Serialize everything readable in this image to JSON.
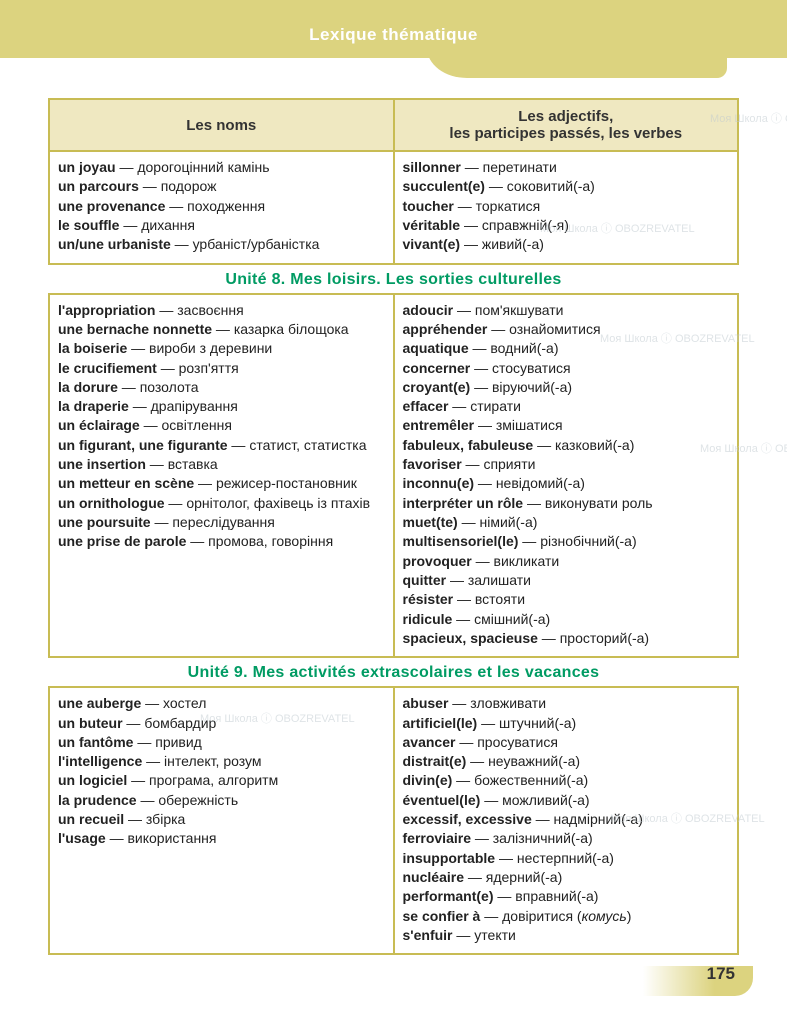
{
  "header": {
    "title": "Lexique thématique"
  },
  "columns": {
    "left_header": "Les noms",
    "right_header_line1": "Les adjectifs,",
    "right_header_line2": "les participes passés, les verbes"
  },
  "section_top": {
    "left": [
      {
        "fr": "un joyau",
        "uk": "дорогоцінний камінь"
      },
      {
        "fr": "un parcours",
        "uk": "подорож"
      },
      {
        "fr": "une provenance",
        "uk": "походження"
      },
      {
        "fr": "le souffle",
        "uk": "дихання"
      },
      {
        "fr": "un/une urbaniste",
        "uk": "урбаніст/урбаністка"
      }
    ],
    "right": [
      {
        "fr": "sillonner",
        "uk": "перетинати"
      },
      {
        "fr": "succulent(e)",
        "uk": "соковитий(-а)"
      },
      {
        "fr": "toucher",
        "uk": "торкатися"
      },
      {
        "fr": "véritable",
        "uk": "справжній(-я)"
      },
      {
        "fr": "vivant(e)",
        "uk": "живий(-а)"
      }
    ]
  },
  "unit8": {
    "title": "Unité 8. Mes loisirs. Les sorties culturelles",
    "left": [
      {
        "fr": "l'appropriation",
        "uk": "засвоєння"
      },
      {
        "fr": "une bernache nonnette",
        "uk": "казарка білощока"
      },
      {
        "fr": "la boiserie",
        "uk": "вироби з деревини"
      },
      {
        "fr": "le crucifiement",
        "uk": "розп'яття"
      },
      {
        "fr": "la dorure",
        "uk": "позолота"
      },
      {
        "fr": "la draperie",
        "uk": "драпірування"
      },
      {
        "fr": "un éclairage",
        "uk": "освітлення"
      },
      {
        "fr": "un figurant, une figurante",
        "uk": "статист, статистка"
      },
      {
        "fr": "une insertion",
        "uk": "вставка"
      },
      {
        "fr": "un metteur en scène",
        "uk": "режисер-постановник"
      },
      {
        "fr": "un ornithologue",
        "uk": "орнітолог, фахівець із птахів"
      },
      {
        "fr": "une poursuite",
        "uk": "переслідування"
      },
      {
        "fr": "une prise de parole",
        "uk": "промова, говоріння"
      }
    ],
    "right": [
      {
        "fr": "adoucir",
        "uk": "пом'якшувати"
      },
      {
        "fr": "appréhender",
        "uk": "ознайомитися"
      },
      {
        "fr": "aquatique",
        "uk": "водний(-а)"
      },
      {
        "fr": "concerner",
        "uk": "стосуватися"
      },
      {
        "fr": "croyant(e)",
        "uk": "віруючий(-а)"
      },
      {
        "fr": "effacer",
        "uk": "стирати"
      },
      {
        "fr": "entremêler",
        "uk": "змішатися"
      },
      {
        "fr": "fabuleux, fabuleuse",
        "uk": "казковий(-а)"
      },
      {
        "fr": "favoriser",
        "uk": "сприяти"
      },
      {
        "fr": "inconnu(e)",
        "uk": "невідомий(-а)"
      },
      {
        "fr": "interpréter un rôle",
        "uk": "виконувати роль"
      },
      {
        "fr": "muet(te)",
        "uk": "німий(-а)"
      },
      {
        "fr": "multisensoriel(le)",
        "uk": "різнобічний(-а)"
      },
      {
        "fr": "provoquer",
        "uk": "викликати"
      },
      {
        "fr": "quitter",
        "uk": "залишати"
      },
      {
        "fr": "résister",
        "uk": "встояти"
      },
      {
        "fr": "ridicule",
        "uk": "смішний(-а)"
      },
      {
        "fr": "spacieux, spacieuse",
        "uk": "просторий(-а)"
      }
    ]
  },
  "unit9": {
    "title": "Unité 9. Mes activités extrascolaires et les vacances",
    "left": [
      {
        "fr": "une auberge",
        "uk": "хостел"
      },
      {
        "fr": "un buteur",
        "uk": "бомбардир"
      },
      {
        "fr": "un fantôme",
        "uk": "привид"
      },
      {
        "fr": "l'intelligence",
        "uk": "інтелект, розум"
      },
      {
        "fr": "un logiciel",
        "uk": "програма, алгоритм"
      },
      {
        "fr": "la prudence",
        "uk": "обережність"
      },
      {
        "fr": "un recueil",
        "uk": "збірка"
      },
      {
        "fr": "l'usage",
        "uk": "використання"
      }
    ],
    "right": [
      {
        "fr": "abuser",
        "uk": "зловживати"
      },
      {
        "fr": "artificiel(le)",
        "uk": "штучний(-а)"
      },
      {
        "fr": "avancer",
        "uk": "просуватися"
      },
      {
        "fr": "distrait(e)",
        "uk": "неуважний(-а)"
      },
      {
        "fr": "divin(e)",
        "uk": "божественний(-а)"
      },
      {
        "fr": "éventuel(le)",
        "uk": "можливий(-а)"
      },
      {
        "fr": "excessif, excessive",
        "uk": "надмірний(-а)"
      },
      {
        "fr": "ferroviaire",
        "uk": "залізничний(-а)"
      },
      {
        "fr": "insupportable",
        "uk": "нестерпний(-а)"
      },
      {
        "fr": "nucléaire",
        "uk": "ядерний(-а)"
      },
      {
        "fr": "performant(e)",
        "uk": "вправний(-а)"
      },
      {
        "fr": "se confier à",
        "uk": "довіритися (комусь)",
        "italic_tail": true
      },
      {
        "fr": "s'enfuir",
        "uk": "утекти"
      }
    ]
  },
  "page_number": "175",
  "style": {
    "banner_bg": "#dcd37f",
    "border_color": "#c8bc54",
    "header_cell_bg": "#efe8c1",
    "unit_title_color": "#009b63",
    "text_color": "#222222",
    "header_text_color": "#ffffff",
    "body_font_size": 14,
    "header_font_size": 15,
    "unit_title_font_size": 16
  },
  "watermark_text": "Моя Школа ⓘ OBOZREVATEL"
}
